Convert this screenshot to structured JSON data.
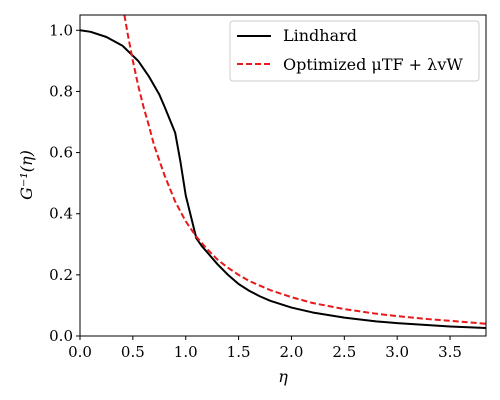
{
  "chart_data": {
    "type": "line",
    "xlabel": "η",
    "ylabel": "G⁻¹(η)",
    "xlim": [
      0.0,
      3.84
    ],
    "ylim": [
      0.0,
      1.05
    ],
    "x_ticks": [
      "0.0",
      "0.5",
      "1.0",
      "1.5",
      "2.0",
      "2.5",
      "3.0",
      "3.5"
    ],
    "y_ticks": [
      "0.0",
      "0.2",
      "0.4",
      "0.6",
      "0.8",
      "1.0"
    ],
    "grid": false,
    "legend_position": "top-right",
    "series": [
      {
        "name": "Lindhard",
        "color": "#000000",
        "style": "solid",
        "x": [
          0.0,
          0.1,
          0.25,
          0.4,
          0.55,
          0.65,
          0.75,
          0.8,
          0.9,
          0.95,
          1.0,
          1.05,
          1.1,
          1.15,
          1.2,
          1.3,
          1.4,
          1.5,
          1.6,
          1.7,
          1.8,
          2.0,
          2.2,
          2.5,
          2.8,
          3.0,
          3.5,
          3.84
        ],
        "y": [
          1.0,
          0.995,
          0.978,
          0.95,
          0.9,
          0.85,
          0.79,
          0.75,
          0.665,
          0.57,
          0.46,
          0.39,
          0.32,
          0.295,
          0.275,
          0.235,
          0.2,
          0.17,
          0.148,
          0.13,
          0.115,
          0.093,
          0.077,
          0.06,
          0.048,
          0.042,
          0.031,
          0.026
        ]
      },
      {
        "name": "Optimized μTF + λvW",
        "color": "#e8191a",
        "style": "dashed",
        "x": [
          0.42,
          0.45,
          0.5,
          0.55,
          0.6,
          0.65,
          0.7,
          0.8,
          0.9,
          1.0,
          1.1,
          1.2,
          1.3,
          1.4,
          1.5,
          1.6,
          1.8,
          2.0,
          2.2,
          2.5,
          2.8,
          3.0,
          3.3,
          3.6,
          3.84
        ],
        "y": [
          1.05,
          0.99,
          0.9,
          0.82,
          0.75,
          0.69,
          0.625,
          0.525,
          0.44,
          0.375,
          0.325,
          0.285,
          0.25,
          0.223,
          0.2,
          0.18,
          0.15,
          0.127,
          0.108,
          0.088,
          0.073,
          0.065,
          0.055,
          0.047,
          0.04
        ]
      }
    ]
  }
}
